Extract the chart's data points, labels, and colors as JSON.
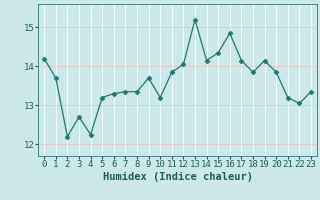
{
  "x": [
    0,
    1,
    2,
    3,
    4,
    5,
    6,
    7,
    8,
    9,
    10,
    11,
    12,
    13,
    14,
    15,
    16,
    17,
    18,
    19,
    20,
    21,
    22,
    23
  ],
  "y": [
    14.2,
    13.7,
    12.2,
    12.7,
    12.25,
    13.2,
    13.3,
    13.35,
    13.35,
    13.7,
    13.2,
    13.85,
    14.05,
    15.2,
    14.15,
    14.35,
    14.85,
    14.15,
    13.85,
    14.15,
    13.85,
    13.2,
    13.05,
    13.35
  ],
  "line_color": "#1c7a6e",
  "marker": "D",
  "marker_size": 2.5,
  "bg_color": "#cde8e8",
  "grid_color": "#f0ffff",
  "xlabel": "Humidex (Indice chaleur)",
  "xlim": [
    -0.5,
    23.5
  ],
  "ylim": [
    11.7,
    15.6
  ],
  "yticks": [
    12,
    13,
    14,
    15
  ],
  "xticks": [
    0,
    1,
    2,
    3,
    4,
    5,
    6,
    7,
    8,
    9,
    10,
    11,
    12,
    13,
    14,
    15,
    16,
    17,
    18,
    19,
    20,
    21,
    22,
    23
  ],
  "tick_fontsize": 6.5,
  "xlabel_fontsize": 7.5,
  "label_color": "#1c5c5c"
}
